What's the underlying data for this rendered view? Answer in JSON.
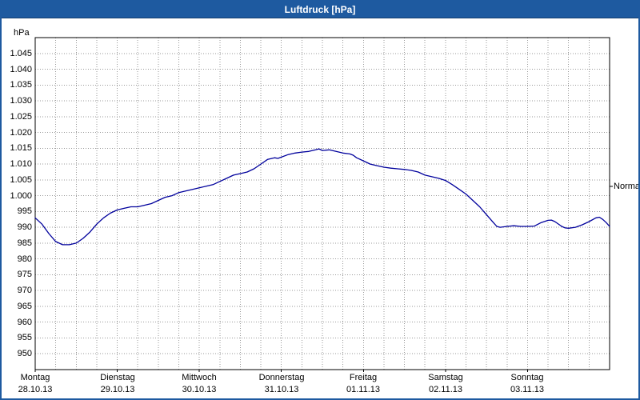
{
  "title_bar": {
    "title": "Luftdruck [hPa]"
  },
  "chart_data": {
    "type": "line",
    "title": "Luftdruck [hPa]",
    "ylabel": "hPa",
    "xlabel": "",
    "normal_label": "Normal",
    "normal_value": 1003,
    "ylim": [
      945,
      1050
    ],
    "x_hours_total": 168,
    "minor_grid_hours": 6,
    "grid": "dotted",
    "line_color": "#00009c",
    "y_tick_values": [
      1045,
      1040,
      1035,
      1030,
      1025,
      1020,
      1015,
      1010,
      1005,
      1000,
      995,
      990,
      985,
      980,
      975,
      970,
      965,
      960,
      955,
      950
    ],
    "y_tick_labels": [
      "1.045",
      "1.040",
      "1.035",
      "1.030",
      "1.025",
      "1.020",
      "1.015",
      "1.010",
      "1.005",
      "1.000",
      "995",
      "990",
      "985",
      "980",
      "975",
      "970",
      "965",
      "960",
      "955",
      "950"
    ],
    "x_days": [
      {
        "name": "Montag",
        "date": "28.10.13"
      },
      {
        "name": "Dienstag",
        "date": "29.10.13"
      },
      {
        "name": "Mittwoch",
        "date": "30.10.13"
      },
      {
        "name": "Donnerstag",
        "date": "31.10.13"
      },
      {
        "name": "Freitag",
        "date": "01.11.13"
      },
      {
        "name": "Samstag",
        "date": "02.11.13"
      },
      {
        "name": "Sonntag",
        "date": "03.11.13"
      }
    ],
    "series": [
      {
        "name": "Luftdruck",
        "unit": "hPa",
        "points": [
          [
            0,
            993
          ],
          [
            2,
            991
          ],
          [
            4,
            988
          ],
          [
            6,
            985.5
          ],
          [
            8,
            984.5
          ],
          [
            10,
            984.5
          ],
          [
            12,
            985
          ],
          [
            14,
            986.5
          ],
          [
            16,
            988.5
          ],
          [
            18,
            991
          ],
          [
            20,
            993
          ],
          [
            22,
            994.5
          ],
          [
            24,
            995.5
          ],
          [
            26,
            996
          ],
          [
            28,
            996.5
          ],
          [
            30,
            996.5
          ],
          [
            32,
            997
          ],
          [
            34,
            997.5
          ],
          [
            36,
            998.5
          ],
          [
            38,
            999.5
          ],
          [
            40,
            1000
          ],
          [
            42,
            1001
          ],
          [
            44,
            1001.5
          ],
          [
            46,
            1002
          ],
          [
            48,
            1002.5
          ],
          [
            50,
            1003
          ],
          [
            52,
            1003.5
          ],
          [
            54,
            1004.5
          ],
          [
            56,
            1005.5
          ],
          [
            58,
            1006.5
          ],
          [
            60,
            1007
          ],
          [
            62,
            1007.5
          ],
          [
            64,
            1008.5
          ],
          [
            66,
            1010
          ],
          [
            68,
            1011.5
          ],
          [
            70,
            1012
          ],
          [
            71,
            1011.8
          ],
          [
            72,
            1012.2
          ],
          [
            74,
            1013
          ],
          [
            76,
            1013.5
          ],
          [
            78,
            1013.8
          ],
          [
            80,
            1014
          ],
          [
            82,
            1014.5
          ],
          [
            83,
            1014.8
          ],
          [
            84,
            1014.3
          ],
          [
            86,
            1014.5
          ],
          [
            88,
            1014
          ],
          [
            90,
            1013.5
          ],
          [
            92,
            1013.2
          ],
          [
            93,
            1012.8
          ],
          [
            94,
            1012
          ],
          [
            96,
            1011
          ],
          [
            98,
            1010
          ],
          [
            100,
            1009.5
          ],
          [
            102,
            1009
          ],
          [
            104,
            1008.7
          ],
          [
            106,
            1008.5
          ],
          [
            108,
            1008.3
          ],
          [
            110,
            1008
          ],
          [
            112,
            1007.5
          ],
          [
            114,
            1006.5
          ],
          [
            116,
            1006
          ],
          [
            118,
            1005.5
          ],
          [
            120,
            1004.8
          ],
          [
            122,
            1003.5
          ],
          [
            124,
            1002
          ],
          [
            126,
            1000.5
          ],
          [
            128,
            998.5
          ],
          [
            130,
            996.5
          ],
          [
            132,
            994
          ],
          [
            134,
            991.5
          ],
          [
            135,
            990.3
          ],
          [
            136,
            990
          ],
          [
            138,
            990.3
          ],
          [
            140,
            990.5
          ],
          [
            142,
            990.3
          ],
          [
            144,
            990.3
          ],
          [
            146,
            990.4
          ],
          [
            148,
            991.5
          ],
          [
            150,
            992.2
          ],
          [
            151,
            992.3
          ],
          [
            152,
            991.8
          ],
          [
            154,
            990.3
          ],
          [
            155,
            989.8
          ],
          [
            156,
            989.7
          ],
          [
            158,
            990
          ],
          [
            160,
            990.8
          ],
          [
            162,
            991.8
          ],
          [
            164,
            993
          ],
          [
            165,
            993.2
          ],
          [
            166,
            992.5
          ],
          [
            167,
            991.5
          ],
          [
            168,
            990.3
          ]
        ]
      }
    ]
  }
}
